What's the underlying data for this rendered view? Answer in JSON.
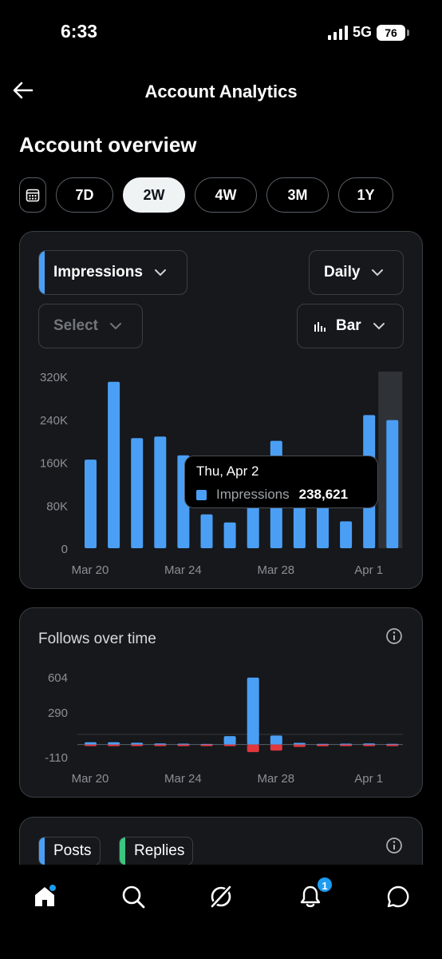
{
  "status_bar": {
    "time": "6:33",
    "network": "5G",
    "battery": "76"
  },
  "header": {
    "title": "Account Analytics"
  },
  "overview": {
    "title": "Account overview",
    "ranges": [
      "7D",
      "2W",
      "4W",
      "3M",
      "1Y"
    ],
    "active_range": "2W"
  },
  "impressions_card": {
    "metric_label": "Impressions",
    "granularity_label": "Daily",
    "compare_label": "Select",
    "chart_type_label": "Bar",
    "tooltip": {
      "date": "Thu, Apr 2",
      "series": "Impressions",
      "value": "238,621"
    }
  },
  "follows_card": {
    "title": "Follows over time"
  },
  "posts_card": {
    "tags": [
      "Posts",
      "Replies"
    ]
  },
  "bottom_nav": {
    "notification_count": "1"
  },
  "colors": {
    "accent": "#4a9ff5",
    "negative": "#e0383c",
    "replies": "#3cc57f"
  },
  "chart_data": [
    {
      "type": "bar",
      "x": [
        "Mar 20",
        "Mar 21",
        "Mar 22",
        "Mar 23",
        "Mar 24",
        "Mar 25",
        "Mar 26",
        "Mar 27",
        "Mar 28",
        "Mar 29",
        "Mar 30",
        "Mar 31",
        "Apr 1",
        "Apr 2"
      ],
      "xticks": [
        "Mar 20",
        "Mar 24",
        "Mar 28",
        "Apr 1"
      ],
      "yticks": [
        "320K",
        "240K",
        "160K",
        "80K",
        "0"
      ],
      "ylim": [
        0,
        320000
      ],
      "series": [
        {
          "name": "Impressions",
          "values": [
            165000,
            310000,
            205000,
            208000,
            173000,
            63000,
            48000,
            95000,
            200000,
            110000,
            172000,
            50000,
            248000,
            238621
          ]
        }
      ],
      "highlight_index": 13
    },
    {
      "type": "bar",
      "title": "Follows over time",
      "x": [
        "Mar 20",
        "Mar 21",
        "Mar 22",
        "Mar 23",
        "Mar 24",
        "Mar 25",
        "Mar 26",
        "Mar 27",
        "Mar 28",
        "Mar 29",
        "Mar 30",
        "Mar 31",
        "Apr 1",
        "Apr 2"
      ],
      "xticks": [
        "Mar 20",
        "Mar 24",
        "Mar 28",
        "Apr 1"
      ],
      "yticks": [
        "604",
        "290",
        "-110"
      ],
      "ylim": [
        -110,
        604
      ],
      "series": [
        {
          "name": "Follows",
          "values": [
            20,
            20,
            16,
            10,
            8,
            5,
            75,
            598,
            80,
            15,
            6,
            8,
            10,
            6
          ]
        },
        {
          "name": "Unfollows",
          "values": [
            -3,
            -3,
            -2,
            -3,
            -3,
            -4,
            -8,
            -68,
            -55,
            -22,
            -15,
            -5,
            -3,
            -4
          ]
        }
      ]
    }
  ]
}
